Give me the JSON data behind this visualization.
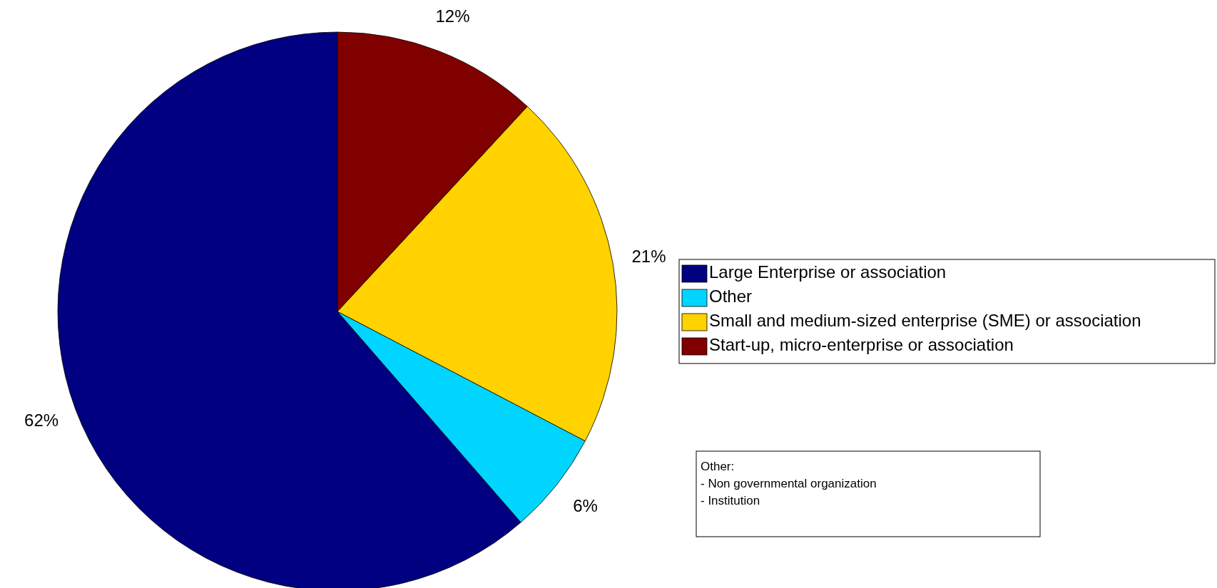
{
  "chart_data": {
    "type": "pie",
    "categories": [
      "Large Enterprise or association",
      "Other",
      "Small and medium-sized enterprise (SME) or association",
      "Start-up, micro-enterprise or association"
    ],
    "values": [
      62,
      6,
      21,
      12
    ],
    "colors": [
      "#000080",
      "#00d5ff",
      "#ffd200",
      "#800000"
    ],
    "value_labels": [
      "62%",
      "6%",
      "21%",
      "12%"
    ],
    "legend": "right",
    "annotations": [
      "Other:",
      "- Non governmental organization",
      "- Institution"
    ]
  }
}
